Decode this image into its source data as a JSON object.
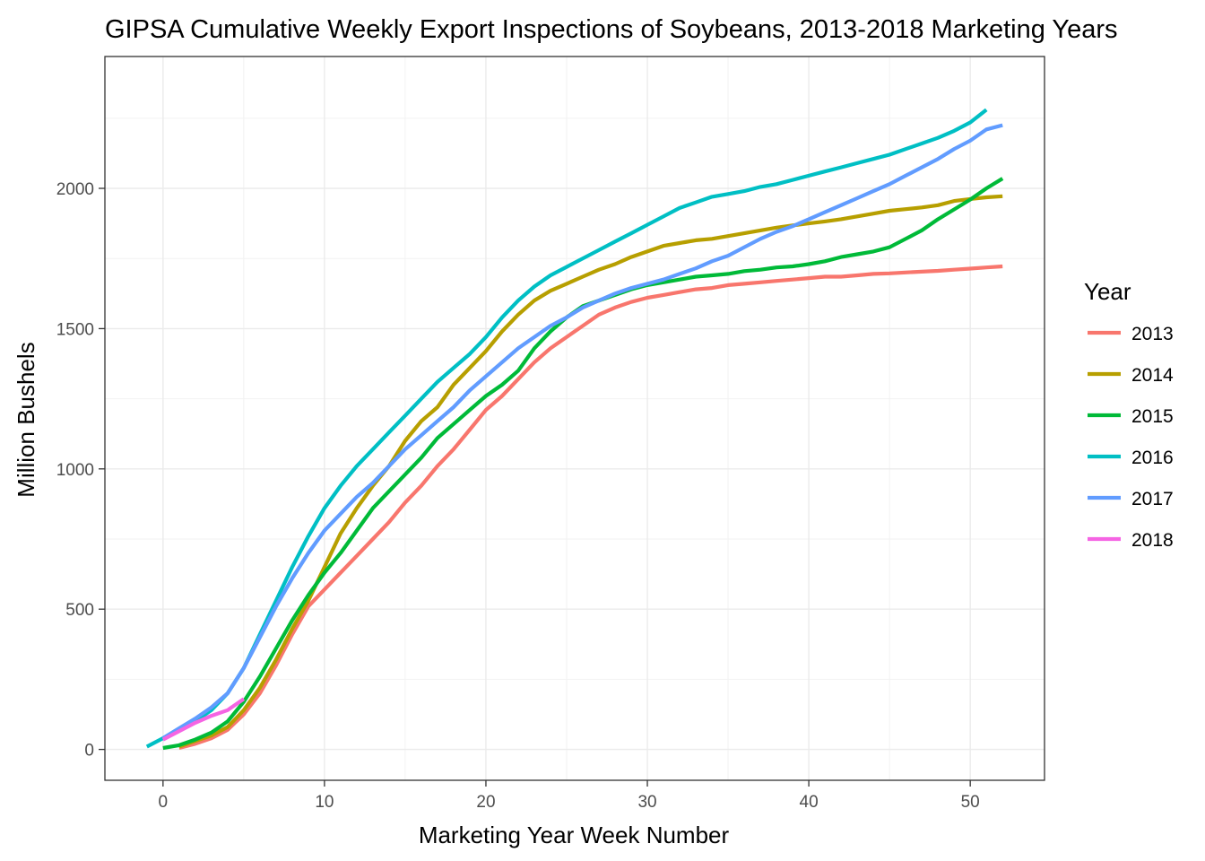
{
  "chart_data": {
    "type": "line",
    "title": "GIPSA Cumulative Weekly Export Inspections of Soybeans, 2013-2018 Marketing Years",
    "xlabel": "Marketing Year Week Number",
    "ylabel": "Million Bushels",
    "xlim": [
      -3.6,
      54.6
    ],
    "ylim": [
      -110,
      2470
    ],
    "x_ticks": [
      0,
      10,
      20,
      30,
      40,
      50
    ],
    "y_ticks": [
      0,
      500,
      1000,
      1500,
      2000
    ],
    "grid": true,
    "legend": {
      "title": "Year",
      "position": "right"
    },
    "series": [
      {
        "name": "2013",
        "color": "#F8766D",
        "x": [
          1,
          2,
          3,
          4,
          5,
          6,
          7,
          8,
          9,
          10,
          11,
          12,
          13,
          14,
          15,
          16,
          17,
          18,
          19,
          20,
          21,
          22,
          23,
          24,
          25,
          26,
          27,
          28,
          29,
          30,
          31,
          32,
          33,
          34,
          35,
          36,
          37,
          38,
          39,
          40,
          41,
          42,
          43,
          44,
          45,
          46,
          47,
          48,
          49,
          50,
          51,
          52
        ],
        "y": [
          5,
          20,
          40,
          70,
          125,
          200,
          300,
          410,
          510,
          570,
          630,
          690,
          750,
          810,
          880,
          940,
          1010,
          1070,
          1140,
          1210,
          1260,
          1320,
          1380,
          1430,
          1470,
          1510,
          1550,
          1575,
          1595,
          1610,
          1620,
          1630,
          1640,
          1645,
          1655,
          1660,
          1665,
          1670,
          1675,
          1680,
          1685,
          1685,
          1690,
          1695,
          1697,
          1700,
          1703,
          1706,
          1710,
          1714,
          1718,
          1722
        ]
      },
      {
        "name": "2014",
        "color": "#B79F00",
        "x": [
          1,
          2,
          3,
          4,
          5,
          6,
          7,
          8,
          9,
          10,
          11,
          12,
          13,
          14,
          15,
          16,
          17,
          18,
          19,
          20,
          21,
          22,
          23,
          24,
          25,
          26,
          27,
          28,
          29,
          30,
          31,
          32,
          33,
          34,
          35,
          36,
          37,
          38,
          39,
          40,
          41,
          42,
          43,
          44,
          45,
          46,
          47,
          48,
          49,
          50,
          51,
          52
        ],
        "y": [
          10,
          30,
          50,
          80,
          140,
          220,
          320,
          430,
          530,
          650,
          770,
          860,
          940,
          1010,
          1100,
          1170,
          1220,
          1300,
          1360,
          1420,
          1490,
          1550,
          1600,
          1635,
          1660,
          1685,
          1710,
          1730,
          1755,
          1775,
          1795,
          1805,
          1815,
          1820,
          1830,
          1840,
          1850,
          1860,
          1868,
          1875,
          1882,
          1890,
          1900,
          1910,
          1920,
          1926,
          1932,
          1940,
          1955,
          1962,
          1968,
          1972
        ]
      },
      {
        "name": "2015",
        "color": "#00BA38",
        "x": [
          0,
          1,
          2,
          3,
          4,
          5,
          6,
          7,
          8,
          9,
          10,
          11,
          12,
          13,
          14,
          15,
          16,
          17,
          18,
          19,
          20,
          21,
          22,
          23,
          24,
          25,
          26,
          27,
          28,
          29,
          30,
          31,
          32,
          33,
          34,
          35,
          36,
          37,
          38,
          39,
          40,
          41,
          42,
          43,
          44,
          45,
          46,
          47,
          48,
          49,
          50,
          51,
          52
        ],
        "y": [
          5,
          15,
          35,
          60,
          100,
          170,
          260,
          360,
          460,
          550,
          630,
          700,
          780,
          860,
          920,
          980,
          1040,
          1110,
          1160,
          1210,
          1260,
          1300,
          1350,
          1430,
          1490,
          1540,
          1580,
          1600,
          1620,
          1640,
          1655,
          1665,
          1675,
          1685,
          1690,
          1695,
          1705,
          1710,
          1718,
          1722,
          1730,
          1740,
          1755,
          1765,
          1775,
          1790,
          1820,
          1850,
          1890,
          1925,
          1960,
          2000,
          2035
        ]
      },
      {
        "name": "2016",
        "color": "#00BFC4",
        "x": [
          -1,
          0,
          1,
          2,
          3,
          4,
          5,
          6,
          7,
          8,
          9,
          10,
          11,
          12,
          13,
          14,
          15,
          16,
          17,
          18,
          19,
          20,
          21,
          22,
          23,
          24,
          25,
          26,
          27,
          28,
          29,
          30,
          31,
          32,
          33,
          34,
          35,
          36,
          37,
          38,
          39,
          40,
          41,
          42,
          43,
          44,
          45,
          46,
          47,
          48,
          49,
          50,
          51
        ],
        "y": [
          10,
          40,
          70,
          100,
          140,
          200,
          290,
          410,
          530,
          650,
          760,
          860,
          940,
          1010,
          1070,
          1130,
          1190,
          1250,
          1310,
          1360,
          1410,
          1470,
          1540,
          1600,
          1650,
          1690,
          1720,
          1750,
          1780,
          1810,
          1840,
          1870,
          1900,
          1930,
          1950,
          1970,
          1980,
          1990,
          2005,
          2015,
          2030,
          2045,
          2060,
          2075,
          2090,
          2105,
          2120,
          2140,
          2160,
          2180,
          2205,
          2235,
          2280
        ]
      },
      {
        "name": "2017",
        "color": "#619CFF",
        "x": [
          0,
          1,
          2,
          3,
          4,
          5,
          6,
          7,
          8,
          9,
          10,
          11,
          12,
          13,
          14,
          15,
          16,
          17,
          18,
          19,
          20,
          21,
          22,
          23,
          24,
          25,
          26,
          27,
          28,
          29,
          30,
          31,
          32,
          33,
          34,
          35,
          36,
          37,
          38,
          39,
          40,
          41,
          42,
          43,
          44,
          45,
          46,
          47,
          48,
          49,
          50,
          51,
          52
        ],
        "y": [
          40,
          75,
          110,
          150,
          200,
          290,
          400,
          510,
          610,
          700,
          780,
          840,
          900,
          950,
          1010,
          1070,
          1120,
          1170,
          1220,
          1280,
          1330,
          1380,
          1430,
          1470,
          1510,
          1540,
          1575,
          1600,
          1625,
          1645,
          1660,
          1675,
          1695,
          1715,
          1740,
          1760,
          1790,
          1820,
          1845,
          1865,
          1890,
          1915,
          1940,
          1965,
          1990,
          2015,
          2045,
          2075,
          2105,
          2140,
          2170,
          2210,
          2225
        ]
      },
      {
        "name": "2018",
        "color": "#F564E3",
        "x": [
          0,
          1,
          2,
          3,
          4,
          5
        ],
        "y": [
          35,
          65,
          95,
          120,
          140,
          180
        ]
      }
    ]
  }
}
